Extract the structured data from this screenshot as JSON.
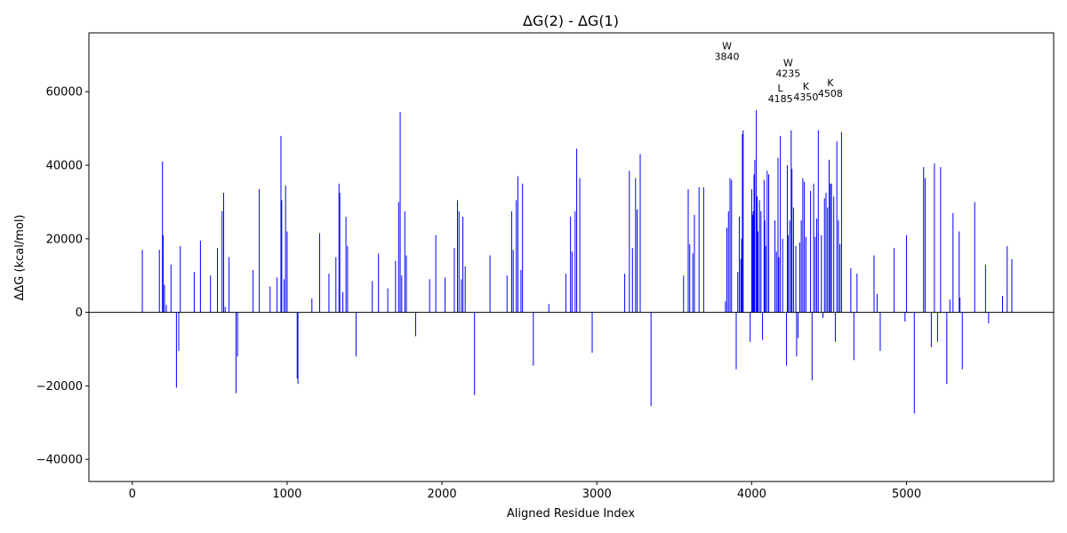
{
  "chart_data": {
    "type": "bar",
    "title": "ΔG(2) - ΔG(1)",
    "xlabel": "Aligned Residue Index",
    "ylabel": "ΔΔG (kcal/mol)",
    "xlim": [
      -280,
      5950
    ],
    "ylim": [
      -46000,
      76000
    ],
    "xticks": [
      0,
      1000,
      2000,
      3000,
      4000,
      5000
    ],
    "yticks": [
      -40000,
      -20000,
      0,
      20000,
      40000,
      60000
    ],
    "bar_color": "#0000ff",
    "zero_line": true,
    "grid": false,
    "x": [
      65,
      175,
      195,
      200,
      208,
      220,
      250,
      285,
      300,
      310,
      400,
      440,
      505,
      550,
      580,
      590,
      600,
      625,
      670,
      680,
      780,
      820,
      890,
      935,
      960,
      965,
      980,
      990,
      1000,
      1065,
      1070,
      1160,
      1210,
      1270,
      1315,
      1335,
      1340,
      1360,
      1380,
      1390,
      1445,
      1550,
      1590,
      1650,
      1700,
      1720,
      1730,
      1740,
      1760,
      1770,
      1830,
      1920,
      1960,
      2020,
      2080,
      2100,
      2110,
      2125,
      2135,
      2150,
      2210,
      2310,
      2420,
      2450,
      2460,
      2480,
      2490,
      2510,
      2520,
      2590,
      2690,
      2800,
      2830,
      2840,
      2860,
      2870,
      2890,
      2970,
      3180,
      3210,
      3230,
      3250,
      3260,
      3280,
      3350,
      3560,
      3590,
      3600,
      3620,
      3630,
      3660,
      3690,
      3830,
      3840,
      3850,
      3860,
      3870,
      3900,
      3910,
      3920,
      3930,
      3935,
      3940,
      3945,
      3990,
      4000,
      4005,
      4010,
      4015,
      4020,
      4030,
      4035,
      4040,
      4050,
      4060,
      4070,
      4080,
      4085,
      4090,
      4100,
      4110,
      4150,
      4160,
      4170,
      4175,
      4185,
      4200,
      4225,
      4230,
      4235,
      4245,
      4255,
      4260,
      4270,
      4285,
      4290,
      4300,
      4310,
      4320,
      4330,
      4340,
      4350,
      4380,
      4390,
      4400,
      4410,
      4420,
      4430,
      4450,
      4460,
      4470,
      4480,
      4490,
      4500,
      4508,
      4515,
      4530,
      4540,
      4550,
      4560,
      4570,
      4580,
      4640,
      4660,
      4680,
      4790,
      4810,
      4830,
      4920,
      4990,
      5000,
      5050,
      5110,
      5120,
      5160,
      5180,
      5200,
      5220,
      5260,
      5280,
      5300,
      5340,
      5345,
      5360,
      5440,
      5510,
      5530,
      5620,
      5650,
      5680
    ],
    "values": [
      17000,
      17000,
      41000,
      21000,
      7500,
      2000,
      13000,
      -20500,
      -10500,
      18000,
      11000,
      19500,
      10000,
      17500,
      27500,
      32500,
      1500,
      15000,
      -22000,
      -12000,
      11500,
      33500,
      7000,
      9500,
      48000,
      30500,
      9000,
      34500,
      22000,
      -18000,
      -19500,
      3800,
      21500,
      10500,
      15000,
      35000,
      32500,
      5500,
      26000,
      18000,
      -12000,
      8500,
      16000,
      6500,
      14000,
      30000,
      54500,
      10000,
      27500,
      15500,
      -6500,
      9000,
      21000,
      9500,
      17500,
      30500,
      27500,
      9000,
      26000,
      12500,
      -22500,
      15500,
      10000,
      27500,
      17000,
      30500,
      37000,
      11500,
      35000,
      -14500,
      2300,
      10500,
      26000,
      16500,
      27500,
      44500,
      36500,
      -11000,
      10500,
      38500,
      17500,
      36500,
      28000,
      43000,
      -25500,
      10000,
      33500,
      18500,
      16000,
      26500,
      34000,
      34000,
      3000,
      23000,
      27500,
      36500,
      36000,
      -15500,
      11000,
      26000,
      14500,
      20000,
      48500,
      49500,
      -8000,
      33500,
      26500,
      27500,
      37500,
      41500,
      55000,
      31500,
      22000,
      30500,
      27500,
      -7500,
      36000,
      25000,
      18000,
      38500,
      37500,
      25000,
      16500,
      42000,
      15000,
      48000,
      20000,
      -14500,
      40000,
      21000,
      25000,
      49500,
      39000,
      28500,
      18000,
      -12000,
      -7000,
      19000,
      25000,
      36500,
      35500,
      20500,
      33000,
      -18500,
      35000,
      20500,
      25500,
      49500,
      21000,
      -1500,
      31000,
      32500,
      28500,
      41500,
      35000,
      35000,
      31500,
      -8000,
      46500,
      25000,
      18500,
      49000,
      12000,
      -13000,
      10500,
      15500,
      5000,
      -10500,
      17500,
      -2500,
      21000,
      -27500,
      39500,
      36500,
      -9500,
      40500,
      -8000,
      39500,
      -19500,
      3500,
      27000,
      22000,
      4000,
      -15500,
      30000,
      13000,
      -3000,
      4500,
      18000,
      14500
    ],
    "annotations": [
      {
        "letter": "W",
        "number": "3840",
        "x": 3840,
        "y": 71500
      },
      {
        "letter": "W",
        "number": "4235",
        "x": 4235,
        "y": 67000
      },
      {
        "letter": "L",
        "number": "4185",
        "x": 4185,
        "y": 60000
      },
      {
        "letter": "K",
        "number": "4350",
        "x": 4350,
        "y": 60500
      },
      {
        "letter": "K",
        "number": "4508",
        "x": 4508,
        "y": 61500
      }
    ]
  }
}
